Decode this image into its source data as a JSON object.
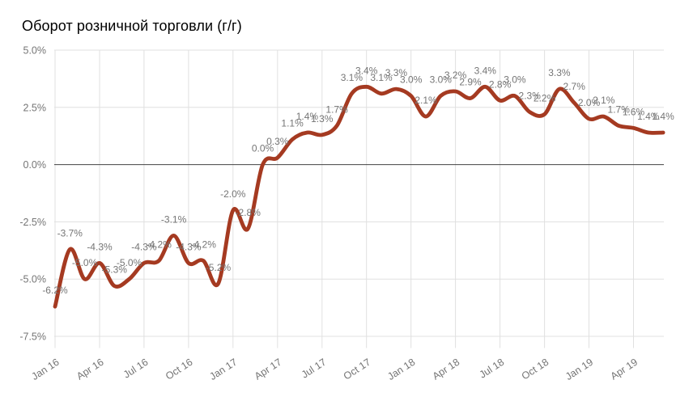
{
  "chart_data": {
    "type": "line",
    "title": "Оборот розничной торговли (г/г)",
    "x": [
      "Jan 16",
      "Feb 16",
      "Mar 16",
      "Apr 16",
      "May 16",
      "Jun 16",
      "Jul 16",
      "Aug 16",
      "Sep 16",
      "Oct 16",
      "Nov 16",
      "Dec 16",
      "Jan 17",
      "Feb 17",
      "Mar 17",
      "Apr 17",
      "May 17",
      "Jun 17",
      "Jul 17",
      "Aug 17",
      "Sep 17",
      "Oct 17",
      "Nov 17",
      "Dec 17",
      "Jan 18",
      "Feb 18",
      "Mar 18",
      "Apr 18",
      "May 18",
      "Jun 18",
      "Jul 18",
      "Aug 18",
      "Sep 18",
      "Oct 18",
      "Nov 18",
      "Dec 18",
      "Jan 19",
      "Feb 19",
      "Mar 19",
      "Apr 19",
      "May 19",
      "Jun 19"
    ],
    "values": [
      -6.2,
      -3.7,
      -5.0,
      -4.3,
      -5.3,
      -5.0,
      -4.3,
      -4.2,
      -3.1,
      -4.3,
      -4.2,
      -5.2,
      -2.0,
      -2.8,
      0.0,
      0.3,
      1.1,
      1.4,
      1.3,
      1.7,
      3.1,
      3.4,
      3.1,
      3.3,
      3.0,
      2.1,
      3.0,
      3.2,
      2.9,
      3.4,
      2.8,
      3.0,
      2.3,
      2.2,
      3.3,
      2.7,
      2.0,
      2.1,
      1.7,
      1.6,
      1.4,
      1.4
    ],
    "point_labels": [
      "-6.2%",
      "-3.7%",
      "-5.0%",
      "-4.3%",
      "-5.3%",
      "-5.0%",
      "-4.3%",
      "-4.2%",
      "-3.1%",
      "-4.3%",
      "-4.2%",
      "-5.2%",
      "-2.0%",
      "-2.8%",
      "0.0%",
      "0.3%",
      "1.1%",
      "1.4%",
      "1.3%",
      "1.7%",
      "3.1%",
      "3.4%",
      "3.1%",
      "3.3%",
      "3.0%",
      "2.1%",
      "3.0%",
      "3.2%",
      "2.9%",
      "3.4%",
      "2.8%",
      "3.0%",
      "2.3%",
      "2.2%",
      "3.3%",
      "2.7%",
      "2.0%",
      "2.1%",
      "1.7%",
      "1.6%",
      "1.4%",
      "1.4%"
    ],
    "x_tick_labels": [
      "Jan 16",
      "Apr 16",
      "Jul 16",
      "Oct 16",
      "Jan 17",
      "Apr 17",
      "Jul 17",
      "Oct 17",
      "Jan 18",
      "Apr 18",
      "Jul 18",
      "Oct 18",
      "Jan 19",
      "Apr 19"
    ],
    "x_tick_every": 3,
    "y_ticks": [
      5.0,
      2.5,
      0.0,
      -2.5,
      -5.0,
      -7.5
    ],
    "y_tick_labels": [
      "5.0%",
      "2.5%",
      "0.0%",
      "-2.5%",
      "-5.0%",
      "-7.5%"
    ],
    "ylim": [
      -7.5,
      5.0
    ],
    "grid": true,
    "legend": "none",
    "colors": {
      "line": "#A53A21",
      "point_label": "#757575",
      "axis_label": "#757575",
      "grid": "#e0e0e0",
      "zero_line": "#424242",
      "title": "#000000",
      "background": "#ffffff"
    }
  }
}
